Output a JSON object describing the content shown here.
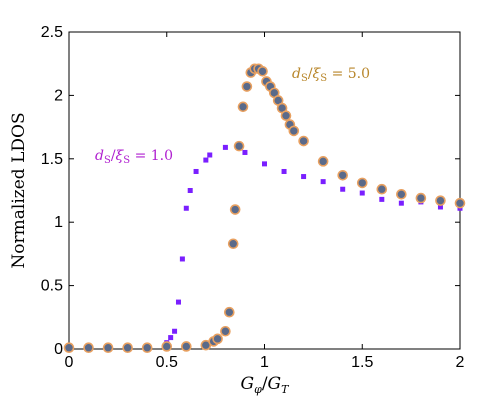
{
  "chart_data": {
    "type": "scatter",
    "xlabel": "G_φ/G_T",
    "ylabel": "Normalized LDOS",
    "xlim": [
      0,
      2
    ],
    "ylim": [
      0,
      2.5
    ],
    "x_ticks": [
      "0",
      "0.5",
      "1",
      "1.5",
      "2"
    ],
    "y_ticks": [
      "0",
      "0.5",
      "1",
      "1.5",
      "2",
      "2.5"
    ],
    "grid": false,
    "legend": "none",
    "annotations": [
      {
        "text": "d_S/ξ_S = 1.0",
        "series": 0
      },
      {
        "text": "d_S/ξ_S = 5.0",
        "series": 1
      }
    ],
    "series": [
      {
        "marker": "square",
        "color": "#7a1fff",
        "points": [
          [
            0,
            0.01
          ],
          [
            0.1,
            0.01
          ],
          [
            0.2,
            0.01
          ],
          [
            0.3,
            0.01
          ],
          [
            0.4,
            0.01
          ],
          [
            0.5,
            0.05
          ],
          [
            0.52,
            0.09
          ],
          [
            0.54,
            0.14
          ],
          [
            0.56,
            0.37
          ],
          [
            0.58,
            0.71
          ],
          [
            0.6,
            1.11
          ],
          [
            0.62,
            1.25
          ],
          [
            0.65,
            1.4
          ],
          [
            0.7,
            1.49
          ],
          [
            0.72,
            1.53
          ],
          [
            0.8,
            1.59
          ],
          [
            0.9,
            1.55
          ],
          [
            1.0,
            1.46
          ],
          [
            1.1,
            1.4
          ],
          [
            1.2,
            1.36
          ],
          [
            1.3,
            1.32
          ],
          [
            1.4,
            1.26
          ],
          [
            1.5,
            1.23
          ],
          [
            1.6,
            1.18
          ],
          [
            1.7,
            1.15
          ],
          [
            1.8,
            1.16
          ],
          [
            1.9,
            1.12
          ],
          [
            2.0,
            1.11
          ]
        ]
      },
      {
        "marker": "circle",
        "color": "#5a6a8a",
        "edge_color": "#e8a060",
        "points": [
          [
            0,
            0.01
          ],
          [
            0.1,
            0.01
          ],
          [
            0.2,
            0.01
          ],
          [
            0.3,
            0.01
          ],
          [
            0.4,
            0.01
          ],
          [
            0.5,
            0.02
          ],
          [
            0.6,
            0.02
          ],
          [
            0.7,
            0.03
          ],
          [
            0.74,
            0.06
          ],
          [
            0.76,
            0.08
          ],
          [
            0.8,
            0.14
          ],
          [
            0.82,
            0.29
          ],
          [
            0.84,
            0.83
          ],
          [
            0.85,
            1.1
          ],
          [
            0.87,
            1.6
          ],
          [
            0.89,
            1.91
          ],
          [
            0.91,
            2.07
          ],
          [
            0.93,
            2.18
          ],
          [
            0.95,
            2.21
          ],
          [
            0.97,
            2.21
          ],
          [
            0.99,
            2.19
          ],
          [
            1.01,
            2.11
          ],
          [
            1.03,
            2.07
          ],
          [
            1.05,
            2.02
          ],
          [
            1.07,
            1.96
          ],
          [
            1.09,
            1.9
          ],
          [
            1.11,
            1.84
          ],
          [
            1.13,
            1.77
          ],
          [
            1.15,
            1.72
          ],
          [
            1.2,
            1.64
          ],
          [
            1.3,
            1.48
          ],
          [
            1.4,
            1.37
          ],
          [
            1.5,
            1.31
          ],
          [
            1.6,
            1.26
          ],
          [
            1.7,
            1.22
          ],
          [
            1.8,
            1.19
          ],
          [
            1.9,
            1.17
          ],
          [
            2.0,
            1.15
          ]
        ]
      }
    ]
  }
}
